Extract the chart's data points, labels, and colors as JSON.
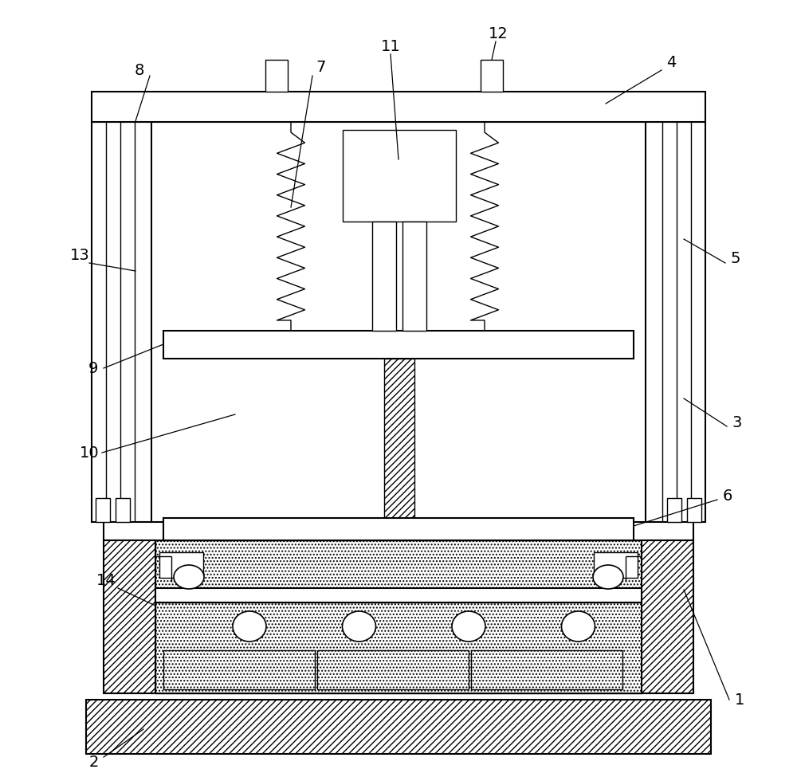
{
  "fig_width": 10.0,
  "fig_height": 9.75,
  "dpi": 100,
  "bg_color": "#ffffff",
  "line_color": "#000000",
  "lw_thin": 1.0,
  "lw_med": 1.5,
  "lw_thick": 2.0
}
